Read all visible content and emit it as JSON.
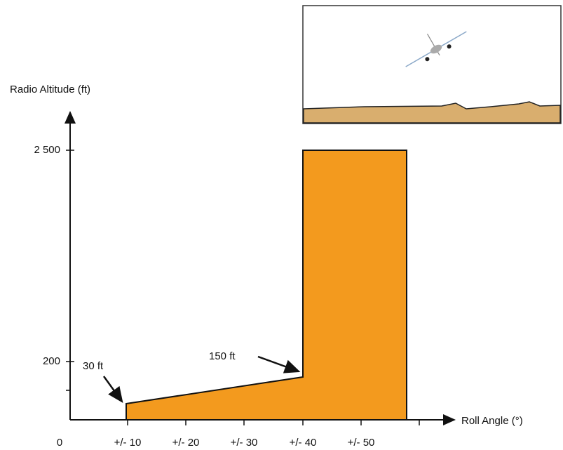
{
  "axes": {
    "y_label": "Radio Altitude (ft)",
    "x_label": "Roll Angle (°)",
    "origin": "0",
    "y_ticks": [
      "2 500",
      "200"
    ],
    "x_ticks": [
      "+/- 10",
      "+/- 20",
      "+/- 30",
      "+/- 40",
      "+/- 50"
    ]
  },
  "annotations": [
    "30 ft",
    "150 ft"
  ]
}
